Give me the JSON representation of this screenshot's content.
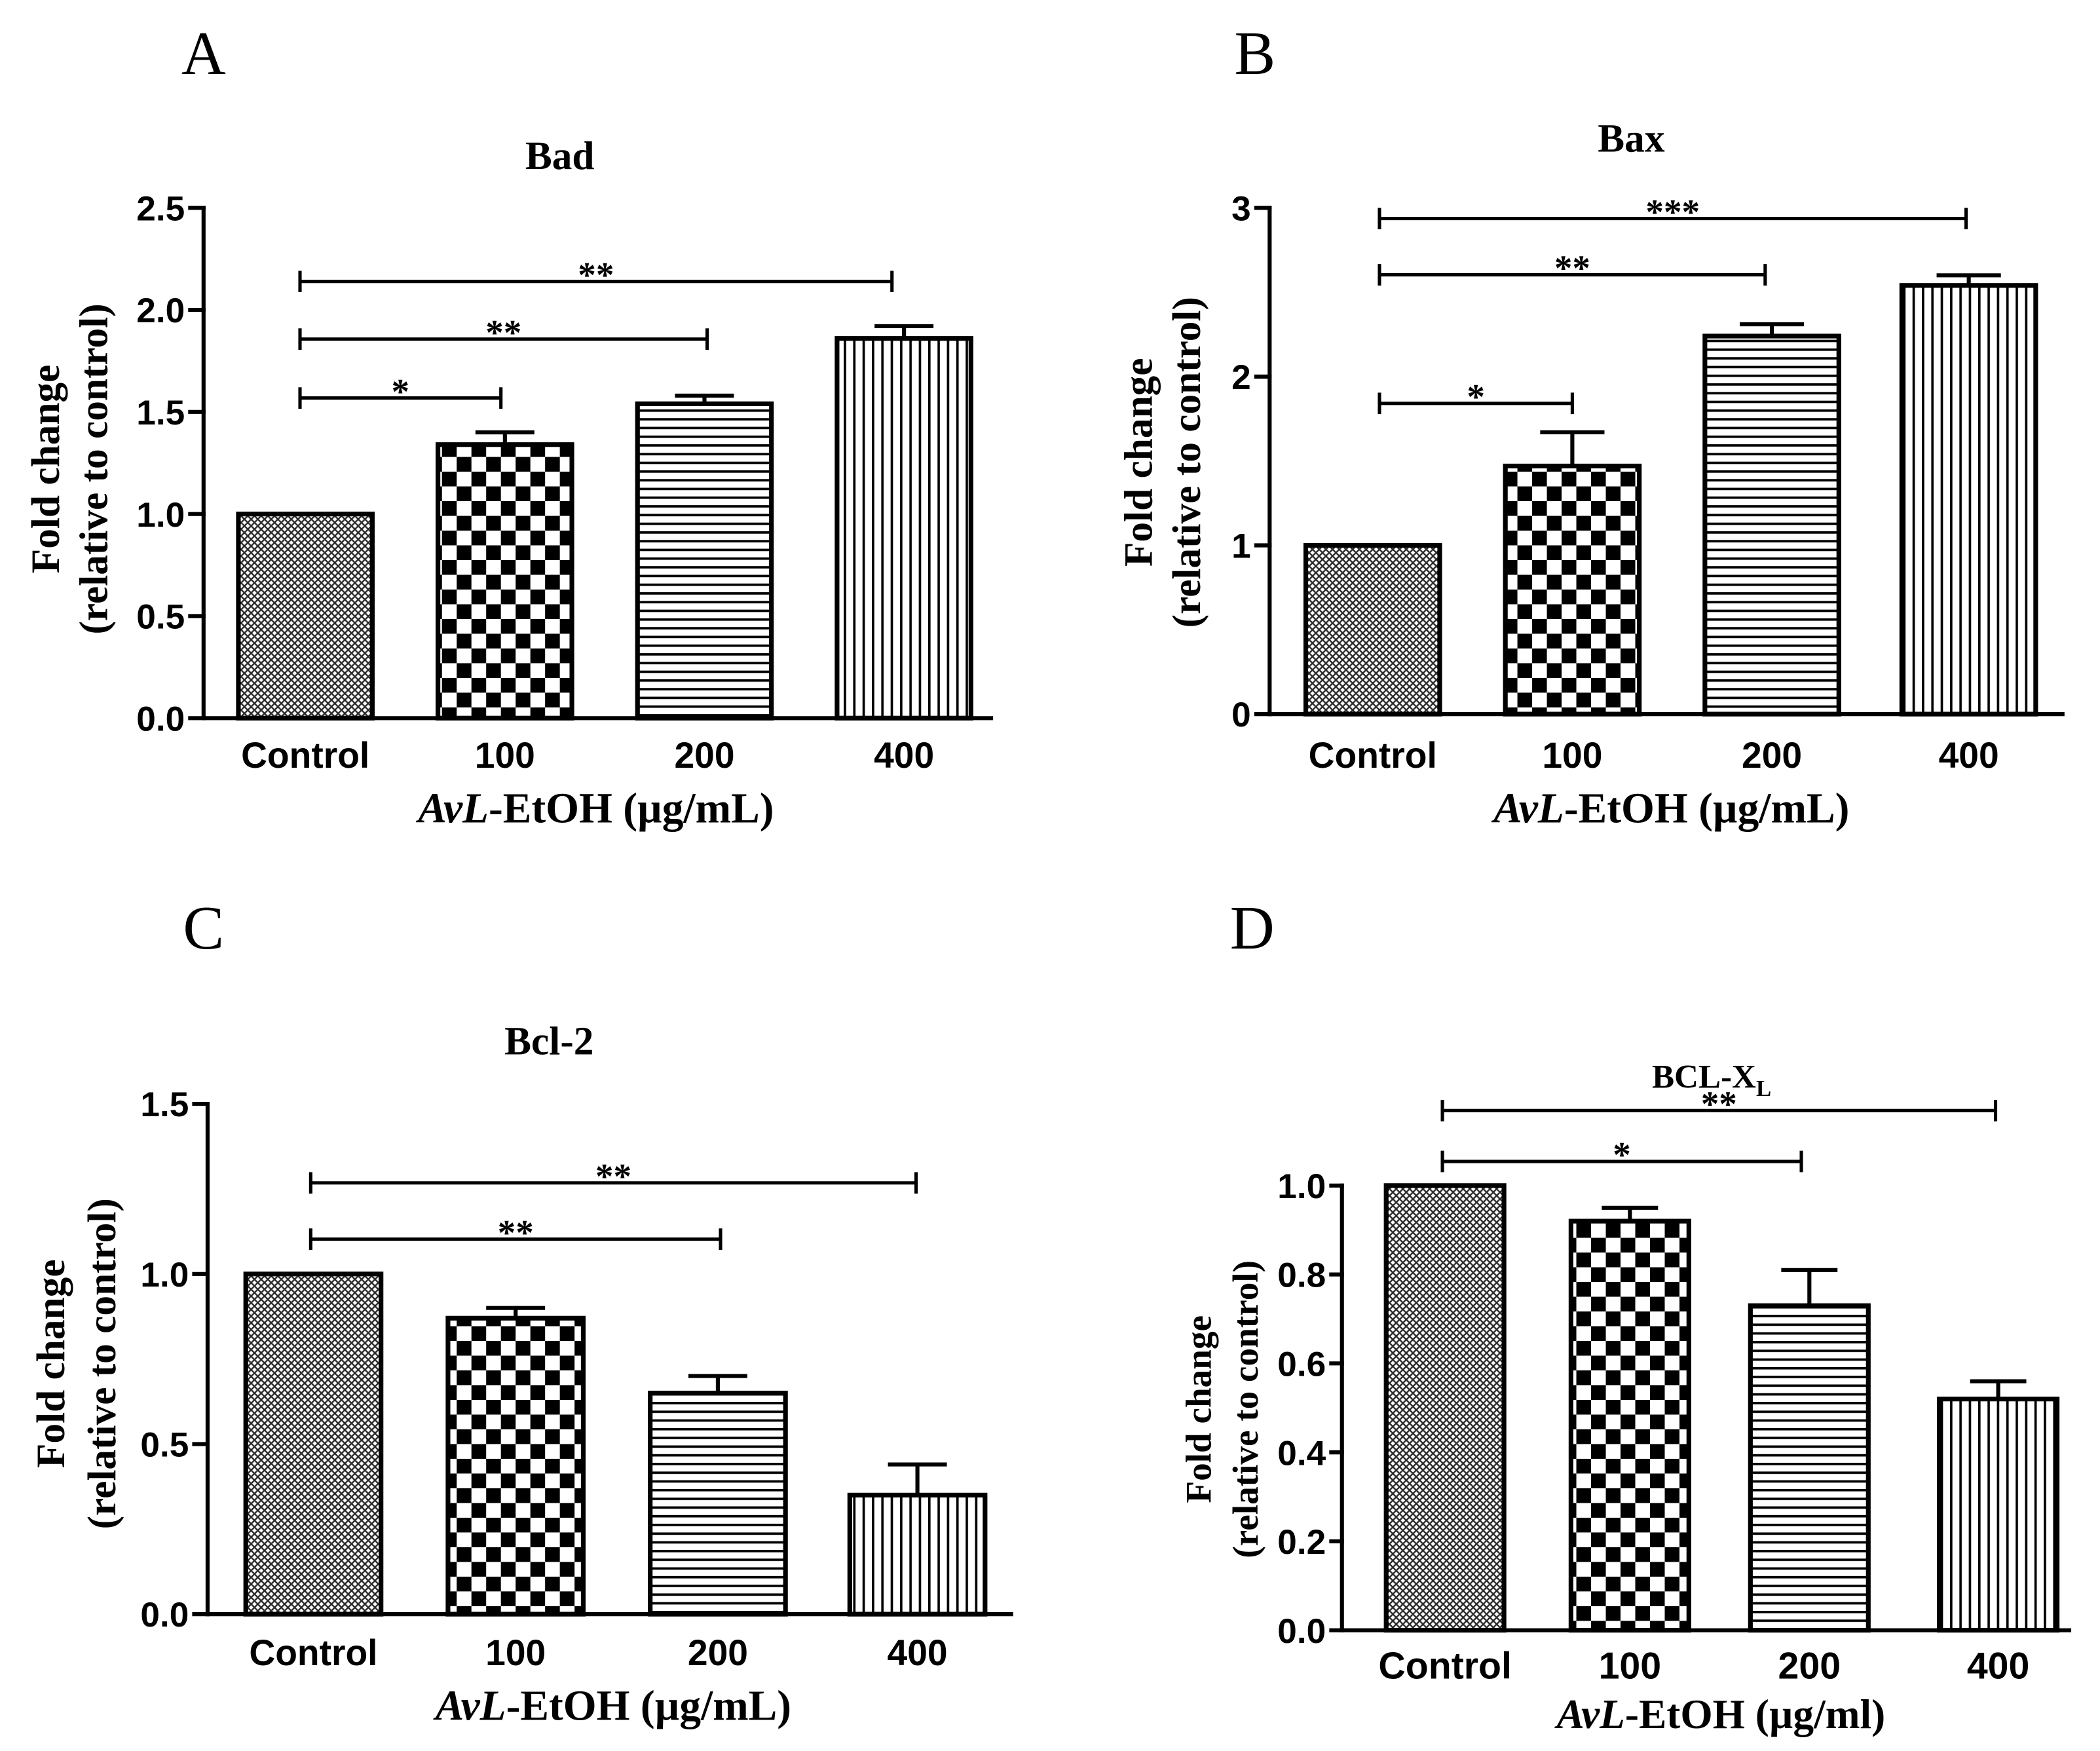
{
  "chart_data": [
    {
      "panel": "A",
      "type": "bar",
      "title": "Bad",
      "title_subscript": "",
      "ylabel": {
        "line1": "Fold change",
        "line2": "(relative to control)"
      },
      "xlabel": {
        "italic": "AvL",
        "text": "-EtOH (µg/mL)"
      },
      "categories": [
        "Control",
        "100",
        "200",
        "400"
      ],
      "values": [
        1.0,
        1.34,
        1.54,
        1.86
      ],
      "errors": [
        0,
        0.06,
        0.04,
        0.06
      ],
      "fill_patterns": [
        "crosshatch",
        "checker",
        "horizontal-lines",
        "vertical-lines"
      ],
      "ylim": [
        0,
        2.5
      ],
      "yticks": [
        0,
        0.5,
        1.0,
        1.5,
        2.0,
        2.5
      ],
      "ytick_labels": [
        "0.0",
        "0.5",
        "1.0",
        "1.5",
        "2.0",
        "2.5"
      ],
      "grid": false,
      "significance": [
        {
          "between": [
            0,
            1
          ],
          "label": "*"
        },
        {
          "between": [
            0,
            2
          ],
          "label": "**"
        },
        {
          "between": [
            0,
            3
          ],
          "label": "**"
        }
      ]
    },
    {
      "panel": "B",
      "type": "bar",
      "title": "Bax",
      "title_subscript": "",
      "ylabel": {
        "line1": "Fold change",
        "line2": "(relative to control)"
      },
      "xlabel": {
        "italic": "AvL",
        "text": "-EtOH (µg/mL)"
      },
      "categories": [
        "Control",
        "100",
        "200",
        "400"
      ],
      "values": [
        1.0,
        1.47,
        2.24,
        2.54
      ],
      "errors": [
        0,
        0.2,
        0.07,
        0.06
      ],
      "fill_patterns": [
        "crosshatch",
        "checker",
        "horizontal-lines",
        "vertical-lines"
      ],
      "ylim": [
        0,
        3
      ],
      "yticks": [
        0,
        1,
        2,
        3
      ],
      "ytick_labels": [
        "0",
        "1",
        "2",
        "3"
      ],
      "grid": false,
      "significance": [
        {
          "between": [
            0,
            1
          ],
          "label": "*"
        },
        {
          "between": [
            0,
            2
          ],
          "label": "**"
        },
        {
          "between": [
            0,
            3
          ],
          "label": "***"
        }
      ]
    },
    {
      "panel": "C",
      "type": "bar",
      "title": "Bcl-2",
      "title_subscript": "",
      "ylabel": {
        "line1": "Fold change",
        "line2": "(relative to control)"
      },
      "xlabel": {
        "italic": "AvL",
        "text": "-EtOH (µg/mL)"
      },
      "categories": [
        "Control",
        "100",
        "200",
        "400"
      ],
      "values": [
        1.0,
        0.87,
        0.65,
        0.35
      ],
      "errors": [
        0,
        0.03,
        0.05,
        0.09
      ],
      "fill_patterns": [
        "crosshatch",
        "checker",
        "horizontal-lines",
        "vertical-lines"
      ],
      "ylim": [
        0,
        1.5
      ],
      "yticks": [
        0,
        0.5,
        1.0,
        1.5
      ],
      "ytick_labels": [
        "0.0",
        "0.5",
        "1.0",
        "1.5"
      ],
      "grid": false,
      "significance": [
        {
          "between": [
            0,
            2
          ],
          "label": "**"
        },
        {
          "between": [
            0,
            3
          ],
          "label": "**"
        }
      ]
    },
    {
      "panel": "D",
      "type": "bar",
      "title": "BCL-X",
      "title_subscript": "L",
      "ylabel": {
        "line1": "Fold change",
        "line2": "(relative to control)"
      },
      "xlabel": {
        "italic": "AvL",
        "text": "-EtOH (µg/ml)"
      },
      "categories": [
        "Control",
        "100",
        "200",
        "400"
      ],
      "values": [
        1.0,
        0.92,
        0.73,
        0.52
      ],
      "errors": [
        0,
        0.03,
        0.08,
        0.04
      ],
      "fill_patterns": [
        "crosshatch",
        "checker",
        "horizontal-lines",
        "vertical-lines"
      ],
      "ylim": [
        0,
        1.0
      ],
      "yticks": [
        0,
        0.2,
        0.4,
        0.6,
        0.8,
        1.0
      ],
      "ytick_labels": [
        "0.0",
        "0.2",
        "0.4",
        "0.6",
        "0.8",
        "1.0"
      ],
      "grid": false,
      "significance": [
        {
          "between": [
            0,
            2
          ],
          "label": "*"
        },
        {
          "between": [
            0,
            3
          ],
          "label": "**"
        }
      ]
    }
  ]
}
